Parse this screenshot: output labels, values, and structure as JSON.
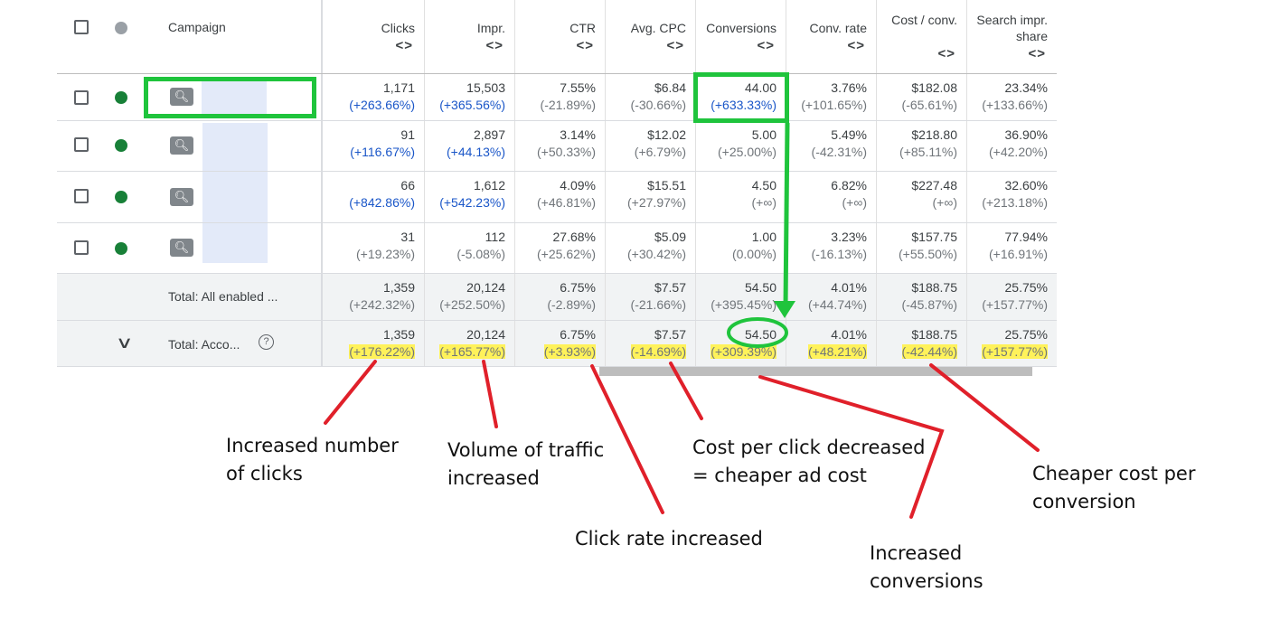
{
  "header": {
    "campaign": "Campaign",
    "columns": [
      {
        "label": "Clicks"
      },
      {
        "label": "Impr."
      },
      {
        "label": "CTR"
      },
      {
        "label": "Avg. CPC"
      },
      {
        "label": "Conversions"
      },
      {
        "label": "Conv. rate"
      },
      {
        "label": "Cost / conv."
      },
      {
        "label": "Search impr. share"
      }
    ],
    "sort_glyph": "<>"
  },
  "rows": [
    {
      "cells": [
        [
          "1,171",
          "(+263.66%)"
        ],
        [
          "15,503",
          "(+365.56%)"
        ],
        [
          "7.55%",
          "(-21.89%)"
        ],
        [
          "$6.84",
          "(-30.66%)"
        ],
        [
          "44.00",
          "(+633.33%)"
        ],
        [
          "3.76%",
          "(+101.65%)"
        ],
        [
          "$182.08",
          "(-65.61%)"
        ],
        [
          "23.34%",
          "(+133.66%)"
        ]
      ]
    },
    {
      "cells": [
        [
          "91",
          "(+116.67%)"
        ],
        [
          "2,897",
          "(+44.13%)"
        ],
        [
          "3.14%",
          "(+50.33%)"
        ],
        [
          "$12.02",
          "(+6.79%)"
        ],
        [
          "5.00",
          "(+25.00%)"
        ],
        [
          "5.49%",
          "(-42.31%)"
        ],
        [
          "$218.80",
          "(+85.11%)"
        ],
        [
          "36.90%",
          "(+42.20%)"
        ]
      ]
    },
    {
      "cells": [
        [
          "66",
          "(+842.86%)"
        ],
        [
          "1,612",
          "(+542.23%)"
        ],
        [
          "4.09%",
          "(+46.81%)"
        ],
        [
          "$15.51",
          "(+27.97%)"
        ],
        [
          "4.50",
          "(+∞)"
        ],
        [
          "6.82%",
          "(+∞)"
        ],
        [
          "$227.48",
          "(+∞)"
        ],
        [
          "32.60%",
          "(+213.18%)"
        ]
      ]
    },
    {
      "cells": [
        [
          "31",
          "(+19.23%)"
        ],
        [
          "112",
          "(-5.08%)"
        ],
        [
          "27.68%",
          "(+25.62%)"
        ],
        [
          "$5.09",
          "(+30.42%)"
        ],
        [
          "1.00",
          "(0.00%)"
        ],
        [
          "3.23%",
          "(-16.13%)"
        ],
        [
          "$157.75",
          "(+55.50%)"
        ],
        [
          "77.94%",
          "(+16.91%)"
        ]
      ]
    }
  ],
  "totals": [
    {
      "label": "Total: All enabled ...",
      "cells": [
        [
          "1,359",
          "(+242.32%)"
        ],
        [
          "20,124",
          "(+252.50%)"
        ],
        [
          "6.75%",
          "(-2.89%)"
        ],
        [
          "$7.57",
          "(-21.66%)"
        ],
        [
          "54.50",
          "(+395.45%)"
        ],
        [
          "4.01%",
          "(+44.74%)"
        ],
        [
          "$188.75",
          "(-45.87%)"
        ],
        [
          "25.75%",
          "(+157.77%)"
        ]
      ]
    },
    {
      "label": "Total: Acco...",
      "cells": [
        [
          "1,359",
          "(+176.22%)"
        ],
        [
          "20,124",
          "(+165.77%)"
        ],
        [
          "6.75%",
          "(+3.93%)"
        ],
        [
          "$7.57",
          "(-14.69%)"
        ],
        [
          "54.50",
          "(+309.39%)"
        ],
        [
          "4.01%",
          "(+48.21%)"
        ],
        [
          "$188.75",
          "(-42.44%)"
        ],
        [
          "25.75%",
          "(+157.77%)"
        ]
      ]
    }
  ],
  "annotations": {
    "clicks": "Increased number of clicks",
    "traffic": "Volume of traffic increased",
    "ctr": "Click rate increased",
    "cpc": "Cost per click decreased = cheaper ad cost",
    "conversions": "Increased conversions",
    "cost_conv": "Cheaper cost per conversion"
  },
  "colors": {
    "green_highlight": "#1fc43c",
    "yellow_highlight": "#fff25a",
    "red_arrow": "#e0202a",
    "blue_change": "#1a56c8",
    "status_green": "#188038"
  },
  "blue_flags": [
    [
      true,
      true,
      false,
      false,
      true,
      false,
      false,
      false
    ],
    [
      true,
      true,
      false,
      false,
      false,
      false,
      false,
      false
    ],
    [
      true,
      true,
      false,
      false,
      false,
      false,
      false,
      false
    ],
    [
      false,
      false,
      false,
      false,
      false,
      false,
      false,
      false
    ]
  ]
}
